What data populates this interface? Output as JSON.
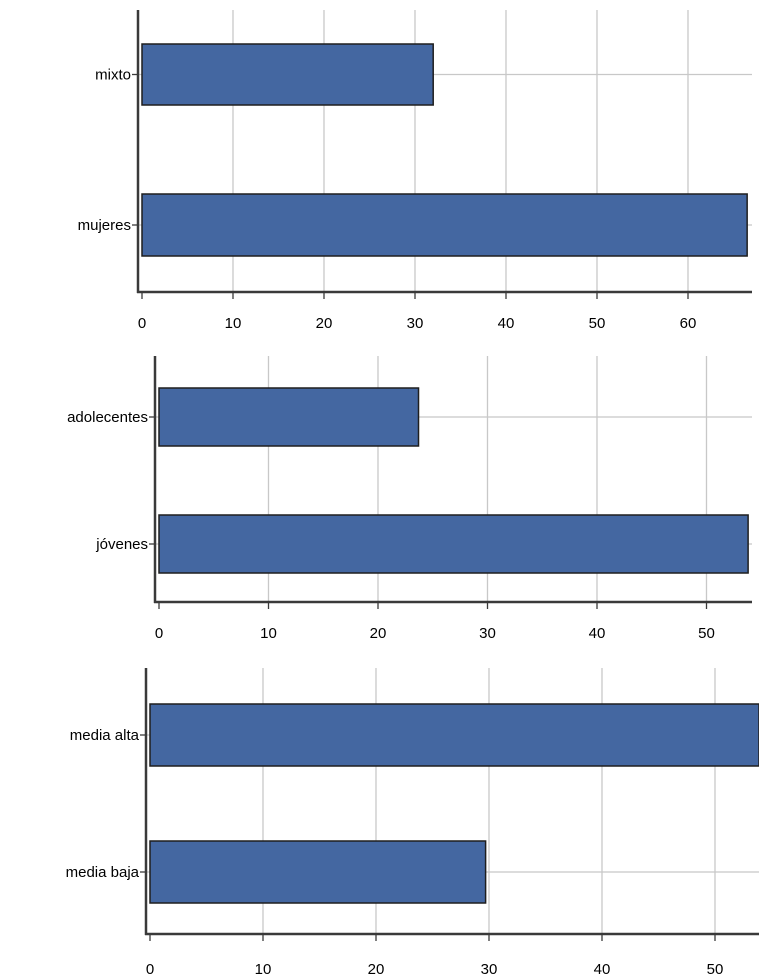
{
  "chart_data": [
    {
      "type": "bar",
      "orientation": "horizontal",
      "categories": [
        "mixto",
        "mujeres"
      ],
      "values": [
        32,
        66.5
      ],
      "xlim": [
        0,
        67
      ],
      "ticks": [
        0,
        10,
        20,
        30,
        40,
        50,
        60
      ],
      "grid": true,
      "bar_color": "#4467a1"
    },
    {
      "type": "bar",
      "orientation": "horizontal",
      "categories": [
        "adolecentes",
        "jóvenes"
      ],
      "values": [
        23.7,
        53.8
      ],
      "xlim": [
        0,
        54
      ],
      "ticks": [
        0,
        10,
        20,
        30,
        40,
        50
      ],
      "grid": true,
      "bar_color": "#4467a1"
    },
    {
      "type": "bar",
      "orientation": "horizontal",
      "categories": [
        "media alta",
        "media baja"
      ],
      "values": [
        54,
        29.7
      ],
      "xlim": [
        0,
        54
      ],
      "ticks": [
        0,
        10,
        20,
        30,
        40,
        50
      ],
      "grid": true,
      "bar_color": "#4467a1"
    }
  ]
}
